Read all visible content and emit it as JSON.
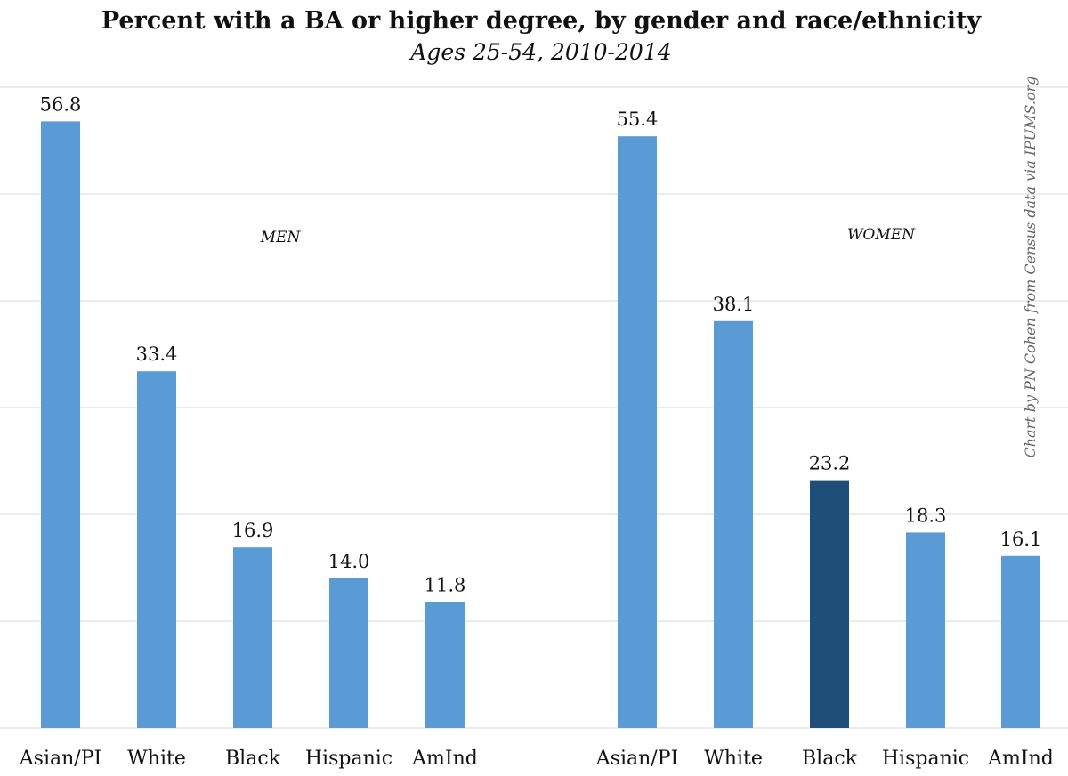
{
  "chart_data": {
    "type": "bar",
    "title": "Percent with a BA or higher degree, by gender and race/ethnicity",
    "subtitle": "Ages 25-54, 2010-2014",
    "ylim": [
      0,
      60
    ],
    "grid": true,
    "credit": "Chart by PN Cohen from Census data via IPUMS.org",
    "groups": [
      {
        "name": "MEN",
        "categories": [
          "Asian/PI",
          "White",
          "Black",
          "Hispanic",
          "AmInd"
        ],
        "values": [
          56.8,
          33.4,
          16.9,
          14.0,
          11.8
        ],
        "value_labels": [
          "56.8",
          "33.4",
          "16.9",
          "14.0",
          "11.8"
        ],
        "colors": [
          "#5b9bd5",
          "#5b9bd5",
          "#5b9bd5",
          "#5b9bd5",
          "#5b9bd5"
        ]
      },
      {
        "name": "WOMEN",
        "categories": [
          "Asian/PI",
          "White",
          "Black",
          "Hispanic",
          "AmInd"
        ],
        "values": [
          55.4,
          38.1,
          23.2,
          18.3,
          16.1
        ],
        "value_labels": [
          "55.4",
          "38.1",
          "23.2",
          "18.3",
          "16.1"
        ],
        "colors": [
          "#5b9bd5",
          "#5b9bd5",
          "#1f4e79",
          "#5b9bd5",
          "#5b9bd5"
        ]
      }
    ]
  }
}
